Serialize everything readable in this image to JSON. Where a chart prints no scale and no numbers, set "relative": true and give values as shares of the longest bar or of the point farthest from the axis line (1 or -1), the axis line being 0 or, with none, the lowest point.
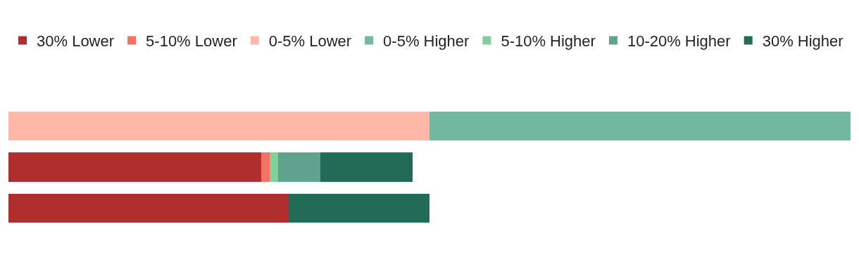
{
  "chart_data": {
    "type": "bar",
    "orientation": "horizontal",
    "stacked": true,
    "relative": true,
    "legend": "top",
    "categories": [
      null,
      null,
      null
    ],
    "series": [
      {
        "name": "30% Lower",
        "color": "#b02e2e",
        "values": [
          null,
          0.3,
          0.333
        ]
      },
      {
        "name": "5-10% Lower",
        "color": "#f47264",
        "values": [
          null,
          0.01,
          null
        ]
      },
      {
        "name": "0-5% Lower",
        "color": "#ffb8a8",
        "values": [
          0.5,
          null,
          null
        ]
      },
      {
        "name": "0-5% Higher",
        "color": "#70b8a0",
        "values": [
          0.5,
          null,
          null
        ]
      },
      {
        "name": "5-10% Higher",
        "color": "#80d09a",
        "values": [
          null,
          0.01,
          null
        ]
      },
      {
        "name": "10-20% Higher",
        "color": "#5fa38e",
        "values": [
          null,
          0.05,
          null
        ]
      },
      {
        "name": "30% Higher",
        "color": "#226b56",
        "values": [
          null,
          0.11,
          0.167
        ]
      }
    ]
  }
}
